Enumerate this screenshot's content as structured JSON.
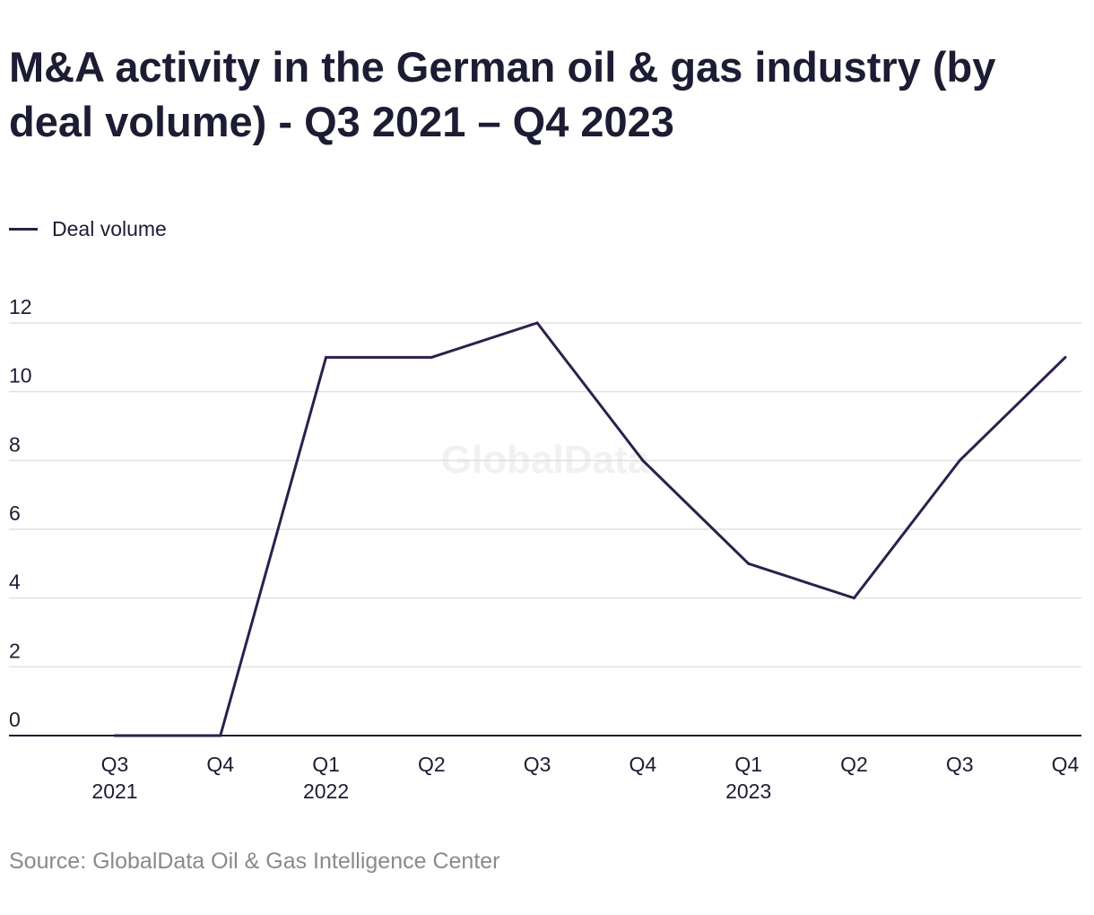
{
  "chart_data": {
    "type": "line",
    "title": "M&A activity in the German oil & gas industry (by deal volume) - Q3 2021 – Q4 2023",
    "categories": [
      "Q3 2021",
      "Q4 2021",
      "Q1 2022",
      "Q2 2022",
      "Q3 2022",
      "Q4 2022",
      "Q1 2023",
      "Q2 2023",
      "Q3 2023",
      "Q4 2023"
    ],
    "x_tick_labels": [
      {
        "line1": "Q3",
        "line2": "2021"
      },
      {
        "line1": "Q4",
        "line2": ""
      },
      {
        "line1": "Q1",
        "line2": "2022"
      },
      {
        "line1": "Q2",
        "line2": ""
      },
      {
        "line1": "Q3",
        "line2": ""
      },
      {
        "line1": "Q4",
        "line2": ""
      },
      {
        "line1": "Q1",
        "line2": "2023"
      },
      {
        "line1": "Q2",
        "line2": ""
      },
      {
        "line1": "Q3",
        "line2": ""
      },
      {
        "line1": "Q4",
        "line2": ""
      }
    ],
    "series": [
      {
        "name": "Deal volume",
        "values": [
          0,
          0,
          11,
          11,
          12,
          8,
          5,
          4,
          8,
          11
        ],
        "color": "#2e1f4d"
      }
    ],
    "y_ticks": [
      0,
      2,
      4,
      6,
      8,
      10,
      12
    ],
    "ylim": [
      0,
      12
    ],
    "xlabel": "",
    "ylabel": "",
    "grid": true,
    "legend_position": "top-left",
    "gridline_color": "#d9d9d9",
    "axis_color": "#1c1c33",
    "watermark": "GlobalData"
  },
  "source": "Source: GlobalData Oil & Gas Intelligence Center"
}
